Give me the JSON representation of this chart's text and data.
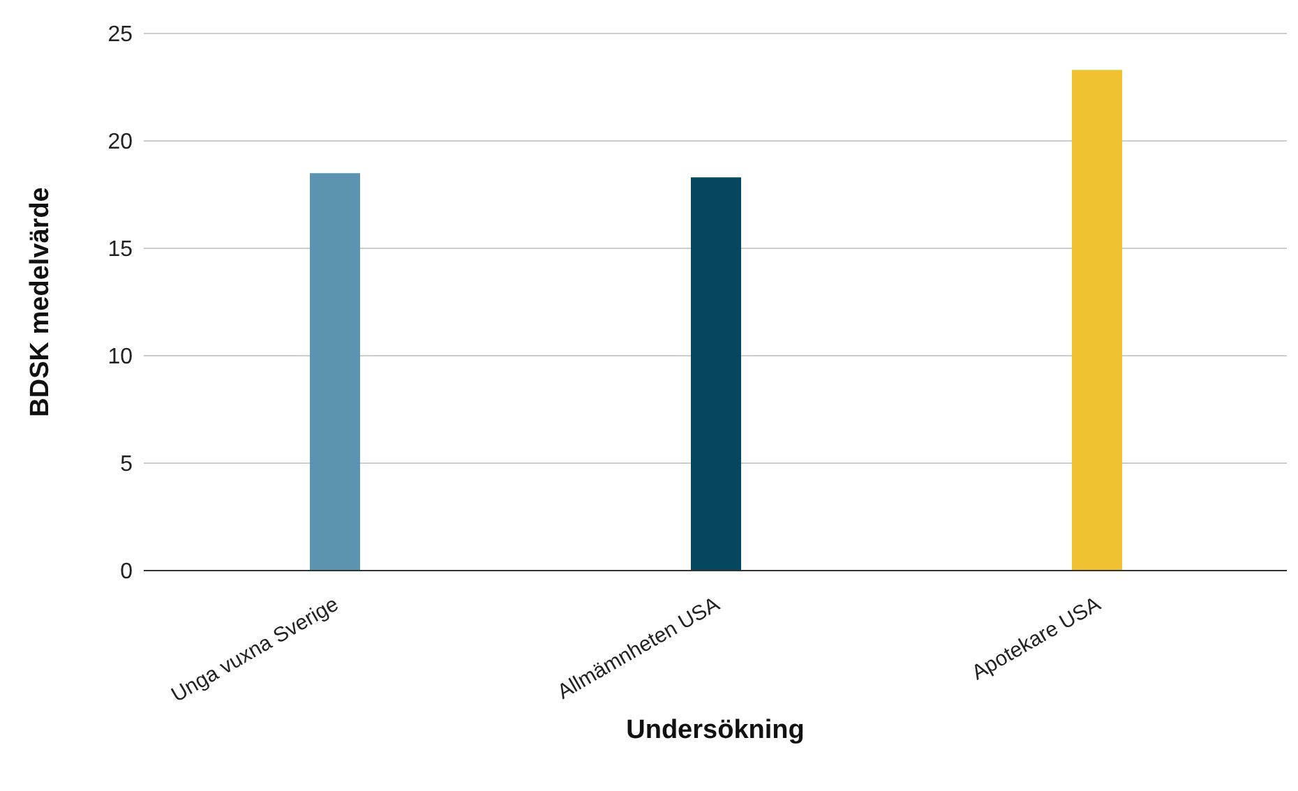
{
  "chart_data": {
    "type": "bar",
    "xlabel": "Undersökning",
    "ylabel": "BDSK medelvärde",
    "categories": [
      "Unga vuxna Sverige",
      "Allmämnheten USA",
      "Apotekare USA"
    ],
    "values": [
      18.5,
      18.3,
      23.3
    ],
    "colors": [
      "#5b93b0",
      "#05475f",
      "#f0c232"
    ],
    "ylim": [
      0,
      25
    ],
    "yticks": [
      0,
      5,
      10,
      15,
      20,
      25
    ],
    "grid": "y",
    "legend": false
  }
}
